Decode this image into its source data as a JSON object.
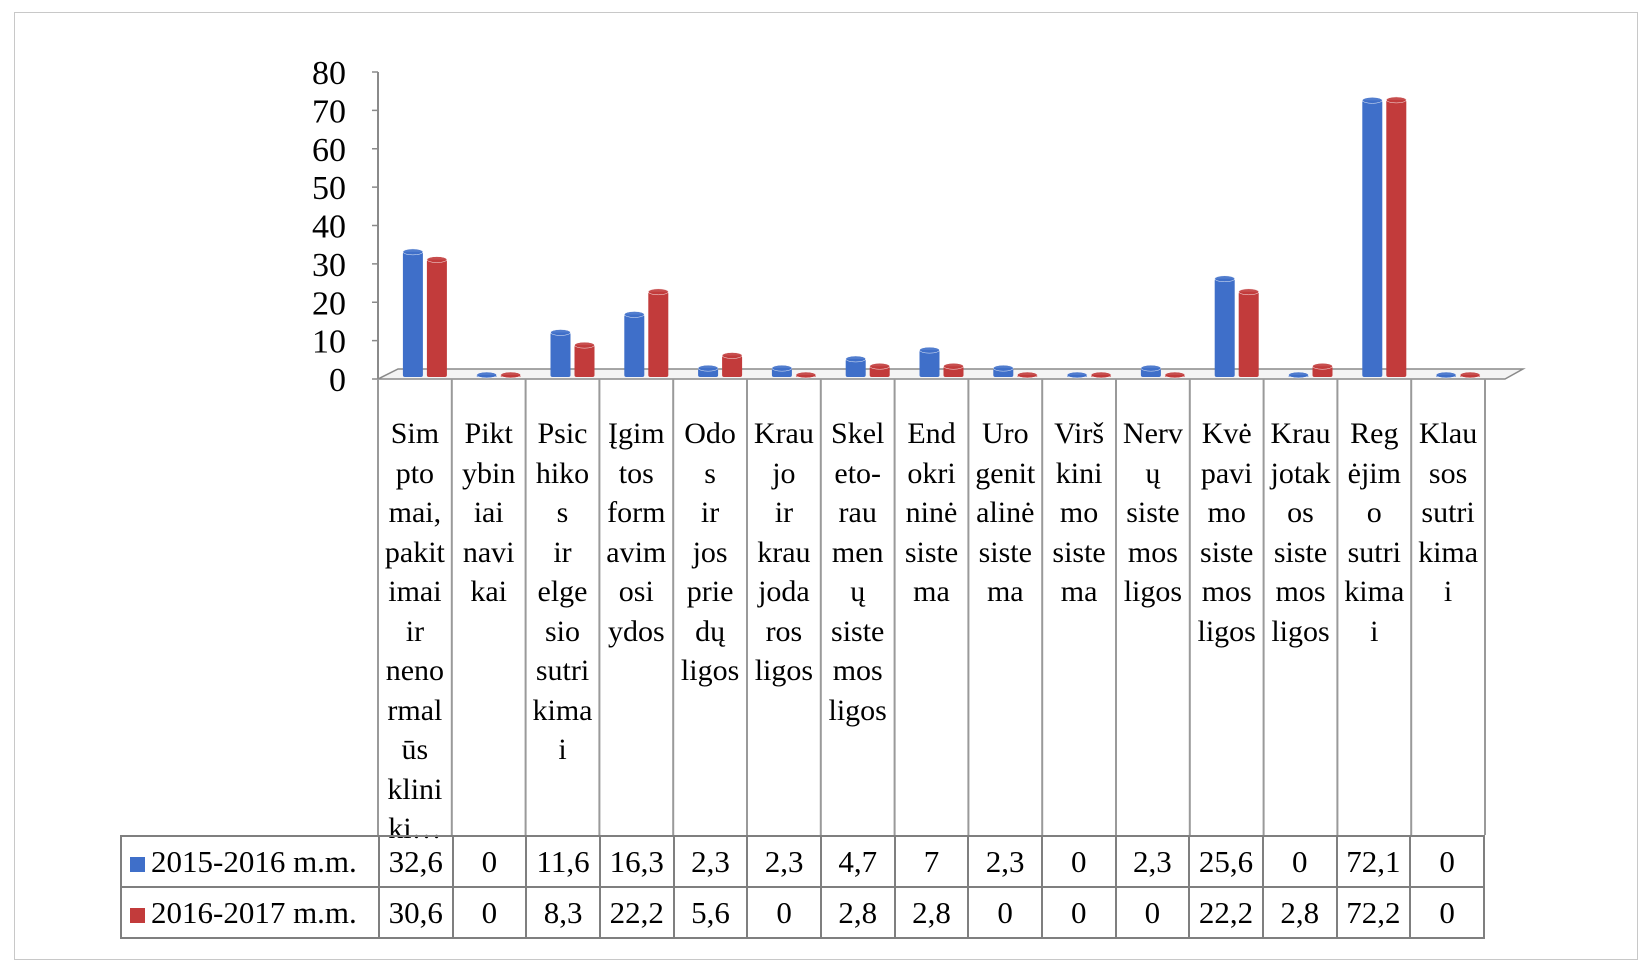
{
  "chart_data": {
    "type": "bar",
    "y_ticks": [
      "0",
      "10",
      "20",
      "30",
      "40",
      "50",
      "60",
      "70",
      "80"
    ],
    "ylim": [
      0,
      80
    ],
    "categories": [
      "Sim pto mai, pakit imai ir neno rmal ūs klini ki…",
      "Pikt ybin iai navi kai",
      "Psic hiko s ir elge sio sutri kima i",
      "Įgim tos form avim osi ydos",
      "Odo s ir jos prie dų ligos",
      "Krau jo ir krau joda ros ligos",
      "Skel eto- rau men ų siste mos ligos",
      "End okri ninė siste ma",
      "Uro genit alinė siste ma",
      "Virš kini mo siste ma",
      "Nerv ų siste mos ligos",
      "Kvė pavi mo siste mos ligos",
      "Krau jotak os siste mos ligos",
      "Reg ėjim o sutri kima i",
      "Klau sos sutri kima i"
    ],
    "series": [
      {
        "name": "2015-2016 m.m.",
        "color": "#3f6fc9",
        "values": [
          32.6,
          0,
          11.6,
          16.3,
          2.3,
          2.3,
          4.7,
          7,
          2.3,
          0,
          2.3,
          25.6,
          0,
          72.1,
          0
        ],
        "labels": [
          "32,6",
          "0",
          "11,6",
          "16,3",
          "2,3",
          "2,3",
          "4,7",
          "7",
          "2,3",
          "0",
          "2,3",
          "25,6",
          "0",
          "72,1",
          "0"
        ]
      },
      {
        "name": "2016-2017 m.m.",
        "color": "#c23b3b",
        "values": [
          30.6,
          0,
          8.3,
          22.2,
          5.6,
          0,
          2.8,
          2.8,
          0,
          0,
          0,
          22.2,
          2.8,
          72.2,
          0
        ],
        "labels": [
          "30,6",
          "0",
          "8,3",
          "22,2",
          "5,6",
          "0",
          "2,8",
          "2,8",
          "0",
          "0",
          "0",
          "22,2",
          "2,8",
          "72,2",
          "0"
        ]
      }
    ],
    "legend_placement": "data table",
    "grid": false
  }
}
